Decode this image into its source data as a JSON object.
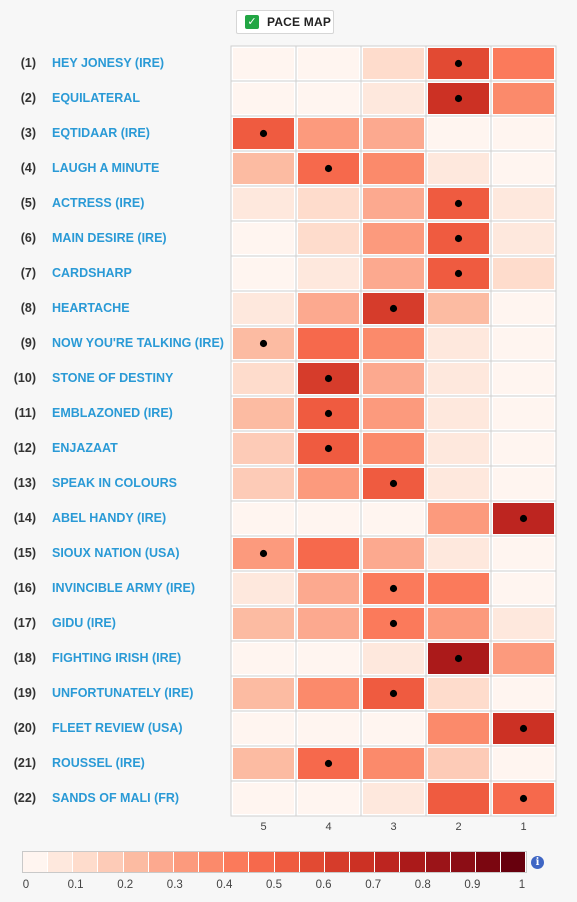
{
  "toggle": {
    "label": "PACE MAP",
    "checked": true
  },
  "colors": {
    "scale": [
      "#fff5f0",
      "#fee8dd",
      "#fedccc",
      "#fdcbb7",
      "#fcbba2",
      "#fca98f",
      "#fc9a7d",
      "#fb8a6b",
      "#fb7a5b",
      "#f6694c",
      "#ef5b40",
      "#e24a33",
      "#d63c2b",
      "#cc3124",
      "#bd2520",
      "#ab1a1a",
      "#9b1418",
      "#8c0d15",
      "#7b0610",
      "#67000d"
    ],
    "name": "#2a9ad6",
    "dot": "#000000"
  },
  "chart_data": {
    "type": "heatmap",
    "columns": [
      "5",
      "4",
      "3",
      "2",
      "1"
    ],
    "scale_ticks": [
      "0",
      "0.1",
      "0.2",
      "0.3",
      "0.4",
      "0.5",
      "0.6",
      "0.7",
      "0.8",
      "0.9",
      "1"
    ],
    "vmin": 0,
    "vmax": 1,
    "rows": [
      {
        "num": "(1)",
        "name": "HEY JONESY (IRE)",
        "values": [
          0.02,
          0.03,
          0.1,
          0.55,
          0.4
        ],
        "dot": 3
      },
      {
        "num": "(2)",
        "name": "EQUILATERAL",
        "values": [
          0.02,
          0.02,
          0.07,
          0.65,
          0.35
        ],
        "dot": 3
      },
      {
        "num": "(3)",
        "name": "EQTIDAAR (IRE)",
        "values": [
          0.52,
          0.3,
          0.25,
          0.02,
          0.02
        ],
        "dot": 0
      },
      {
        "num": "(4)",
        "name": "LAUGH A MINUTE",
        "values": [
          0.22,
          0.48,
          0.35,
          0.05,
          0.02
        ],
        "dot": 1
      },
      {
        "num": "(5)",
        "name": "ACTRESS (IRE)",
        "values": [
          0.05,
          0.12,
          0.28,
          0.52,
          0.06
        ],
        "dot": 3
      },
      {
        "num": "(6)",
        "name": "MAIN DESIRE (IRE)",
        "values": [
          0.03,
          0.12,
          0.32,
          0.5,
          0.07
        ],
        "dot": 3
      },
      {
        "num": "(7)",
        "name": "CARDSHARP",
        "values": [
          0.03,
          0.07,
          0.28,
          0.52,
          0.12
        ],
        "dot": 3
      },
      {
        "num": "(8)",
        "name": "HEARTACHE",
        "values": [
          0.08,
          0.25,
          0.6,
          0.2,
          0.02
        ],
        "dot": 2
      },
      {
        "num": "(9)",
        "name": "NOW YOU'RE TALKING (IRE)",
        "values": [
          0.2,
          0.45,
          0.36,
          0.05,
          0.02
        ],
        "dot": 0
      },
      {
        "num": "(10)",
        "name": "STONE OF DESTINY",
        "values": [
          0.12,
          0.6,
          0.26,
          0.05,
          0.02
        ],
        "dot": 1
      },
      {
        "num": "(11)",
        "name": "EMBLAZONED (IRE)",
        "values": [
          0.2,
          0.5,
          0.32,
          0.05,
          0.02
        ],
        "dot": 1
      },
      {
        "num": "(12)",
        "name": "ENJAZAAT",
        "values": [
          0.18,
          0.5,
          0.36,
          0.05,
          0.02
        ],
        "dot": 1
      },
      {
        "num": "(13)",
        "name": "SPEAK IN COLOURS",
        "values": [
          0.15,
          0.32,
          0.52,
          0.07,
          0.02
        ],
        "dot": 2
      },
      {
        "num": "(14)",
        "name": "ABEL HANDY (IRE)",
        "values": [
          0.02,
          0.02,
          0.03,
          0.34,
          0.7
        ],
        "dot": 4
      },
      {
        "num": "(15)",
        "name": "SIOUX NATION (USA)",
        "values": [
          0.3,
          0.45,
          0.25,
          0.05,
          0.02
        ],
        "dot": 0
      },
      {
        "num": "(16)",
        "name": "INVINCIBLE ARMY (IRE)",
        "values": [
          0.07,
          0.25,
          0.4,
          0.4,
          0.03
        ],
        "dot": 2
      },
      {
        "num": "(17)",
        "name": "GIDU (IRE)",
        "values": [
          0.22,
          0.25,
          0.4,
          0.3,
          0.06
        ],
        "dot": 2
      },
      {
        "num": "(18)",
        "name": "FIGHTING IRISH (IRE)",
        "values": [
          0.02,
          0.02,
          0.07,
          0.75,
          0.3
        ],
        "dot": 3
      },
      {
        "num": "(19)",
        "name": "UNFORTUNATELY (IRE)",
        "values": [
          0.2,
          0.36,
          0.52,
          0.1,
          0.02
        ],
        "dot": 2
      },
      {
        "num": "(20)",
        "name": "FLEET REVIEW (USA)",
        "values": [
          0.02,
          0.02,
          0.03,
          0.35,
          0.65
        ],
        "dot": 4
      },
      {
        "num": "(21)",
        "name": "ROUSSEL (IRE)",
        "values": [
          0.22,
          0.48,
          0.36,
          0.15,
          0.03
        ],
        "dot": 1
      },
      {
        "num": "(22)",
        "name": "SANDS OF MALI (FR)",
        "values": [
          0.02,
          0.03,
          0.07,
          0.52,
          0.48
        ],
        "dot": 4
      }
    ]
  }
}
